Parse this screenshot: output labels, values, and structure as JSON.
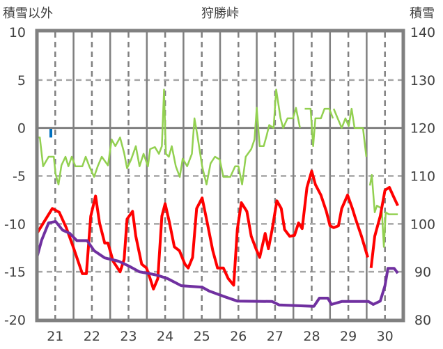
{
  "chart_data": {
    "type": "line",
    "title": "狩勝峠",
    "ylabel_left": "積雪以外",
    "ylabel_right": "積雪",
    "xlim": [
      20.5,
      30.5
    ],
    "ylim_left": [
      -20,
      10
    ],
    "ylim_right": [
      80,
      140
    ],
    "x_ticks": [
      "21",
      "22",
      "23",
      "24",
      "25",
      "26",
      "27",
      "28",
      "29",
      "30"
    ],
    "y_ticks_left": [
      "10",
      "5",
      "0",
      "-5",
      "-10",
      "-15",
      "-20"
    ],
    "y_ticks_right": [
      "140",
      "130",
      "120",
      "110",
      "100",
      "90",
      "80"
    ],
    "grid": true,
    "series": [
      {
        "name": "green",
        "axis": "left",
        "color": "#92d050",
        "points": [
          [
            20.5,
            -1
          ],
          [
            20.58,
            -1
          ],
          [
            20.67,
            -4
          ],
          [
            20.82,
            -3
          ],
          [
            20.96,
            -3
          ],
          [
            21.01,
            -4.8
          ],
          [
            21.09,
            -5.9
          ],
          [
            21.17,
            -3.9
          ],
          [
            21.28,
            -3
          ],
          [
            21.36,
            -4
          ],
          [
            21.45,
            -3
          ],
          [
            21.55,
            -4
          ],
          [
            21.74,
            -4
          ],
          [
            21.83,
            -3
          ],
          [
            21.93,
            -4
          ],
          [
            22.06,
            -5.1
          ],
          [
            22.16,
            -4
          ],
          [
            22.27,
            -3
          ],
          [
            22.44,
            -3.9
          ],
          [
            22.54,
            -1.2
          ],
          [
            22.64,
            -1.9
          ],
          [
            22.77,
            -1
          ],
          [
            22.88,
            -2.6
          ],
          [
            22.96,
            -4.2
          ],
          [
            23.07,
            -3.3
          ],
          [
            23.2,
            -1.9
          ],
          [
            23.3,
            -4
          ],
          [
            23.41,
            -2.7
          ],
          [
            23.53,
            -4
          ],
          [
            23.59,
            -2.2
          ],
          [
            23.72,
            -2
          ],
          [
            23.83,
            -2.7
          ],
          [
            23.91,
            -1.9
          ],
          [
            23.97,
            4
          ],
          [
            24.02,
            -2.7
          ],
          [
            24.1,
            -3
          ],
          [
            24.18,
            -1.9
          ],
          [
            24.29,
            -4
          ],
          [
            24.4,
            -5.1
          ],
          [
            24.48,
            -3.2
          ],
          [
            24.6,
            -4
          ],
          [
            24.73,
            -2.7
          ],
          [
            24.8,
            1
          ],
          [
            24.88,
            -0.8
          ],
          [
            25.01,
            -4
          ],
          [
            25.13,
            -5.9
          ],
          [
            25.24,
            -3.7
          ],
          [
            25.36,
            -3
          ],
          [
            25.49,
            -3.3
          ],
          [
            25.59,
            -5.1
          ],
          [
            25.78,
            -5.1
          ],
          [
            25.91,
            -4
          ],
          [
            26.0,
            -4
          ],
          [
            26.1,
            -5.9
          ],
          [
            26.2,
            -3
          ],
          [
            26.35,
            -2.2
          ],
          [
            26.44,
            -1.2
          ],
          [
            26.5,
            2.1
          ],
          [
            26.58,
            -1.9
          ],
          [
            26.69,
            -1.9
          ],
          [
            26.77,
            -0.8
          ],
          [
            26.84,
            0.3
          ],
          [
            26.96,
            0
          ],
          [
            27.03,
            4
          ],
          [
            27.15,
            1
          ],
          [
            27.22,
            0
          ],
          [
            27.34,
            1
          ],
          [
            27.49,
            1
          ],
          [
            27.57,
            2.1
          ],
          [
            27.68,
            0
          ],
          null,
          [
            27.81,
            2
          ],
          [
            27.97,
            2
          ],
          [
            28.04,
            -1.9
          ],
          [
            28.1,
            1
          ],
          [
            28.25,
            1
          ],
          [
            28.35,
            2
          ],
          [
            28.48,
            2
          ],
          [
            28.58,
            1
          ],
          null,
          [
            28.6,
            2
          ],
          [
            28.71,
            1
          ],
          [
            28.82,
            0
          ],
          [
            28.92,
            1
          ],
          [
            29.01,
            0.2
          ],
          [
            29.09,
            2
          ],
          [
            29.17,
            0
          ],
          [
            29.4,
            0
          ],
          [
            29.49,
            -3
          ],
          null,
          [
            29.59,
            -6
          ],
          [
            29.64,
            -4.9
          ],
          [
            29.72,
            -8.8
          ],
          [
            29.78,
            -8.1
          ],
          [
            29.91,
            -8.4
          ],
          [
            29.97,
            -12.4
          ],
          [
            30.02,
            -8.8
          ],
          [
            30.1,
            -9
          ],
          [
            30.35,
            -9
          ]
        ]
      },
      {
        "name": "red",
        "axis": "left",
        "color": "#ff0000",
        "points": [
          [
            20.5,
            -11
          ],
          [
            20.92,
            -8.4
          ],
          [
            21.11,
            -8.8
          ],
          [
            21.3,
            -10.4
          ],
          [
            21.49,
            -12.4
          ],
          [
            21.74,
            -15.2
          ],
          [
            21.85,
            -15.2
          ],
          [
            21.97,
            -9.2
          ],
          [
            22.1,
            -7.1
          ],
          [
            22.21,
            -9.9
          ],
          [
            22.35,
            -12
          ],
          [
            22.44,
            -12
          ],
          [
            22.58,
            -13.9
          ],
          [
            22.77,
            -15
          ],
          [
            22.88,
            -13.7
          ],
          [
            22.96,
            -9.5
          ],
          [
            23.11,
            -8.7
          ],
          [
            23.2,
            -11.3
          ],
          [
            23.36,
            -14.2
          ],
          [
            23.49,
            -14.6
          ],
          [
            23.59,
            -15.7
          ],
          [
            23.68,
            -16.8
          ],
          [
            23.8,
            -15.7
          ],
          [
            23.91,
            -9.2
          ],
          [
            24.0,
            -7.9
          ],
          [
            24.12,
            -9.9
          ],
          [
            24.25,
            -12.4
          ],
          [
            24.39,
            -12.8
          ],
          [
            24.54,
            -14.2
          ],
          [
            24.63,
            -14.6
          ],
          [
            24.75,
            -13.5
          ],
          [
            24.86,
            -8.4
          ],
          [
            25.01,
            -7.3
          ],
          [
            25.15,
            -9.9
          ],
          [
            25.3,
            -12.8
          ],
          [
            25.43,
            -14.6
          ],
          [
            25.59,
            -14.6
          ],
          [
            25.72,
            -15.7
          ],
          [
            25.87,
            -16.4
          ],
          [
            25.97,
            -10.6
          ],
          [
            26.08,
            -7.8
          ],
          [
            26.23,
            -8.7
          ],
          [
            26.35,
            -11.3
          ],
          [
            26.48,
            -12.6
          ],
          [
            26.58,
            -13.5
          ],
          [
            26.73,
            -11
          ],
          [
            26.82,
            -12.6
          ],
          [
            26.92,
            -10.6
          ],
          [
            27.05,
            -7.6
          ],
          [
            27.17,
            -8.4
          ],
          [
            27.26,
            -10.6
          ],
          [
            27.4,
            -11.3
          ],
          [
            27.53,
            -11.2
          ],
          [
            27.64,
            -9.9
          ],
          [
            27.74,
            -10.5
          ],
          [
            27.87,
            -6.2
          ],
          [
            28.0,
            -4.5
          ],
          [
            28.1,
            -5.9
          ],
          [
            28.25,
            -7
          ],
          [
            28.4,
            -8.7
          ],
          [
            28.5,
            -10.2
          ],
          [
            28.6,
            -10.4
          ],
          [
            28.73,
            -10.2
          ],
          [
            28.82,
            -8.4
          ],
          [
            28.98,
            -7
          ],
          [
            29.11,
            -8.4
          ],
          [
            29.2,
            -9.5
          ],
          [
            29.36,
            -11.3
          ],
          [
            29.53,
            -13.5
          ],
          null,
          [
            29.62,
            -14.6
          ],
          [
            29.72,
            -11.3
          ],
          [
            29.87,
            -9.2
          ],
          [
            30.0,
            -6.5
          ],
          [
            30.12,
            -6.2
          ],
          [
            30.25,
            -7.3
          ],
          [
            30.35,
            -8.1
          ]
        ]
      },
      {
        "name": "blue",
        "axis": "left",
        "color": "#0070c0",
        "points": [
          [
            20.88,
            -0.1
          ],
          [
            20.88,
            -1.0
          ]
        ]
      },
      {
        "name": "積雪",
        "axis": "right",
        "color": "#7030a0",
        "points": [
          [
            20.5,
            93
          ],
          [
            20.63,
            96.6
          ],
          [
            20.82,
            100.2
          ],
          [
            21.01,
            100.5
          ],
          [
            21.2,
            98.7
          ],
          [
            21.4,
            98
          ],
          [
            21.59,
            96.5
          ],
          [
            21.87,
            96.5
          ],
          [
            22.06,
            94.4
          ],
          [
            22.35,
            92.9
          ],
          [
            22.73,
            92.2
          ],
          [
            23.01,
            91.2
          ],
          [
            23.3,
            90
          ],
          [
            23.59,
            89.6
          ],
          [
            23.78,
            89.3
          ],
          [
            24.06,
            88.6
          ],
          [
            24.44,
            87.1
          ],
          [
            25.01,
            86.8
          ],
          [
            25.2,
            86
          ],
          [
            25.59,
            84.9
          ],
          [
            25.97,
            83.9
          ],
          [
            26.92,
            83.8
          ],
          [
            27.11,
            83.1
          ],
          [
            28.06,
            82.8
          ],
          [
            28.21,
            84.5
          ],
          [
            28.44,
            84.5
          ],
          [
            28.54,
            83.2
          ],
          [
            28.82,
            83.8
          ],
          [
            29.55,
            83.8
          ],
          [
            29.68,
            83.2
          ],
          [
            29.87,
            83.9
          ],
          [
            30.0,
            87.1
          ],
          [
            30.08,
            90.7
          ],
          [
            30.25,
            90.7
          ],
          [
            30.35,
            89.7
          ]
        ]
      }
    ]
  }
}
